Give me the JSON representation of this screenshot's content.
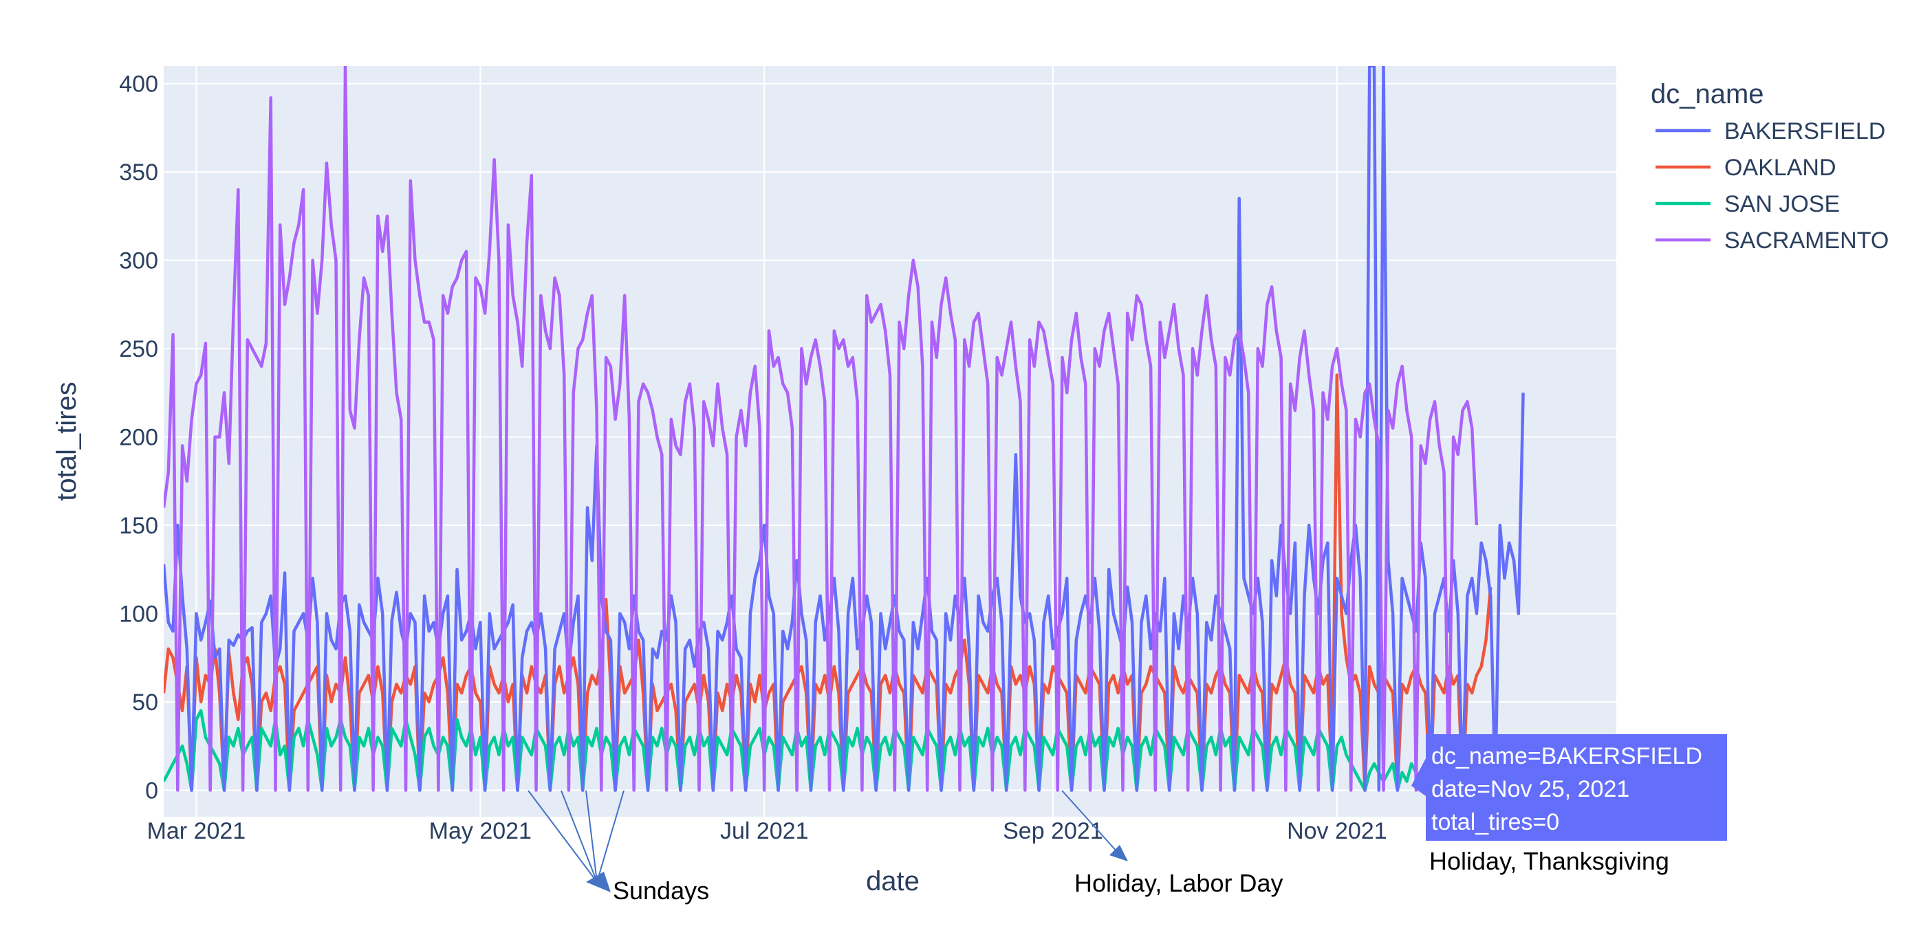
{
  "chart_data": {
    "type": "line",
    "x_start": "2021-02-22",
    "x_end": "2021-12-31",
    "xlabel": "date",
    "ylabel": "total_tires",
    "ylim": [
      -15,
      410
    ],
    "x_ticks": [
      {
        "date": "2021-03-01",
        "label": "Mar 2021"
      },
      {
        "date": "2021-05-01",
        "label": "May 2021"
      },
      {
        "date": "2021-07-01",
        "label": "Jul 2021"
      },
      {
        "date": "2021-09-01",
        "label": "Sep 2021"
      },
      {
        "date": "2021-11-01",
        "label": "Nov 2021"
      }
    ],
    "y_ticks": [
      0,
      50,
      100,
      150,
      200,
      250,
      300,
      350,
      400
    ],
    "legend": {
      "title": "dc_name",
      "position": "right"
    },
    "series": [
      {
        "name": "BAKERSFIELD",
        "color": "#636efa",
        "values": [
          128,
          95,
          90,
          150,
          110,
          80,
          0,
          100,
          85,
          95,
          107,
          75,
          80,
          0,
          85,
          82,
          88,
          85,
          90,
          92,
          0,
          95,
          100,
          110,
          70,
          80,
          123,
          0,
          90,
          95,
          100,
          85,
          120,
          95,
          0,
          100,
          85,
          80,
          105,
          110,
          90,
          0,
          105,
          95,
          90,
          85,
          120,
          100,
          0,
          96,
          112,
          90,
          80,
          100,
          95,
          0,
          110,
          90,
          95,
          80,
          100,
          110,
          0,
          125,
          85,
          90,
          100,
          80,
          95,
          0,
          100,
          80,
          85,
          90,
          95,
          105,
          0,
          75,
          90,
          95,
          85,
          100,
          80,
          0,
          80,
          90,
          100,
          70,
          95,
          110,
          0,
          160,
          130,
          195,
          110,
          90,
          85,
          0,
          100,
          95,
          80,
          110,
          90,
          85,
          0,
          80,
          75,
          90,
          85,
          110,
          95,
          0,
          80,
          85,
          70,
          90,
          95,
          80,
          0,
          90,
          85,
          95,
          110,
          80,
          75,
          0,
          100,
          120,
          130,
          150,
          110,
          100,
          0,
          90,
          80,
          95,
          130,
          100,
          85,
          0,
          95,
          110,
          85,
          100,
          120,
          90,
          0,
          100,
          120,
          80,
          90,
          110,
          95,
          0,
          100,
          80,
          95,
          110,
          90,
          85,
          0,
          95,
          80,
          100,
          120,
          90,
          85,
          0,
          100,
          85,
          110,
          95,
          120,
          80,
          0,
          110,
          95,
          90,
          110,
          120,
          95,
          0,
          100,
          190,
          110,
          95,
          100,
          85,
          0,
          95,
          110,
          80,
          90,
          100,
          120,
          0,
          85,
          100,
          110,
          95,
          120,
          90,
          0,
          125,
          100,
          90,
          80,
          115,
          95,
          0,
          95,
          110,
          80,
          100,
          90,
          120,
          0,
          100,
          80,
          110,
          90,
          120,
          100,
          0,
          95,
          85,
          110,
          100,
          90,
          80,
          0,
          335,
          120,
          110,
          100,
          120,
          95,
          0,
          130,
          110,
          150,
          120,
          100,
          140,
          0,
          110,
          150,
          120,
          100,
          130,
          140,
          0,
          120,
          110,
          100,
          130,
          150,
          120,
          0,
          410,
          410,
          0,
          410,
          130,
          100,
          0,
          120,
          110,
          100,
          90,
          140,
          120,
          0,
          100,
          110,
          120,
          90,
          130,
          100,
          0,
          110,
          120,
          100,
          140,
          130,
          110,
          0,
          150,
          120,
          140,
          130,
          100,
          225
        ]
      },
      {
        "name": "OAKLAND",
        "color": "#ef553b",
        "values": [
          55,
          80,
          75,
          60,
          45,
          70,
          0,
          75,
          50,
          65,
          60,
          80,
          55,
          0,
          78,
          55,
          40,
          70,
          75,
          60,
          0,
          50,
          55,
          45,
          65,
          70,
          60,
          0,
          45,
          50,
          55,
          60,
          65,
          70,
          0,
          65,
          50,
          60,
          55,
          75,
          50,
          0,
          55,
          60,
          65,
          50,
          70,
          55,
          0,
          50,
          60,
          55,
          65,
          60,
          70,
          0,
          55,
          50,
          60,
          65,
          75,
          55,
          0,
          60,
          55,
          65,
          70,
          55,
          50,
          0,
          70,
          60,
          55,
          65,
          50,
          60,
          0,
          65,
          55,
          70,
          60,
          55,
          65,
          0,
          60,
          70,
          55,
          65,
          75,
          60,
          0,
          55,
          65,
          60,
          75,
          108,
          60,
          0,
          70,
          55,
          60,
          65,
          85,
          55,
          0,
          60,
          45,
          50,
          55,
          60,
          45,
          0,
          50,
          55,
          60,
          45,
          65,
          50,
          0,
          55,
          45,
          60,
          50,
          65,
          55,
          0,
          60,
          50,
          65,
          45,
          55,
          60,
          0,
          50,
          55,
          60,
          65,
          70,
          55,
          0,
          60,
          55,
          65,
          50,
          70,
          55,
          0,
          55,
          60,
          65,
          70,
          60,
          55,
          0,
          60,
          65,
          55,
          70,
          60,
          55,
          0,
          65,
          60,
          55,
          70,
          65,
          60,
          0,
          60,
          55,
          65,
          70,
          85,
          60,
          0,
          65,
          60,
          55,
          70,
          60,
          55,
          0,
          70,
          60,
          65,
          55,
          70,
          60,
          0,
          60,
          55,
          70,
          65,
          60,
          55,
          0,
          65,
          60,
          55,
          70,
          65,
          60,
          0,
          60,
          65,
          55,
          70,
          60,
          65,
          0,
          55,
          60,
          70,
          65,
          60,
          55,
          0,
          70,
          60,
          55,
          65,
          60,
          55,
          0,
          60,
          55,
          65,
          70,
          60,
          55,
          0,
          65,
          60,
          55,
          70,
          60,
          55,
          0,
          60,
          55,
          65,
          75,
          60,
          55,
          0,
          65,
          60,
          55,
          70,
          60,
          65,
          0,
          235,
          100,
          75,
          60,
          65,
          55,
          0,
          70,
          60,
          55,
          65,
          60,
          55,
          0,
          60,
          55,
          65,
          70,
          60,
          55,
          0,
          65,
          60,
          55,
          70,
          60,
          65,
          0,
          60,
          55,
          65,
          70,
          85,
          115
        ]
      },
      {
        "name": "SAN JOSE",
        "color": "#00cc96",
        "values": [
          5,
          10,
          15,
          20,
          25,
          15,
          0,
          40,
          45,
          30,
          25,
          20,
          15,
          0,
          30,
          25,
          35,
          20,
          25,
          30,
          0,
          35,
          30,
          25,
          40,
          20,
          25,
          0,
          30,
          35,
          25,
          40,
          30,
          20,
          0,
          35,
          25,
          30,
          40,
          30,
          25,
          0,
          30,
          25,
          35,
          20,
          30,
          25,
          0,
          35,
          30,
          25,
          40,
          30,
          20,
          0,
          30,
          35,
          25,
          20,
          30,
          25,
          0,
          40,
          30,
          25,
          35,
          20,
          30,
          0,
          25,
          30,
          20,
          35,
          25,
          30,
          0,
          30,
          25,
          20,
          35,
          30,
          25,
          0,
          25,
          30,
          20,
          35,
          25,
          30,
          0,
          30,
          25,
          35,
          20,
          30,
          25,
          0,
          25,
          30,
          20,
          35,
          30,
          25,
          0,
          30,
          25,
          35,
          20,
          30,
          25,
          0,
          25,
          30,
          20,
          35,
          25,
          30,
          0,
          30,
          25,
          20,
          35,
          30,
          25,
          0,
          25,
          30,
          35,
          20,
          30,
          25,
          0,
          30,
          25,
          20,
          35,
          25,
          30,
          0,
          25,
          30,
          20,
          35,
          30,
          25,
          0,
          30,
          25,
          35,
          20,
          30,
          25,
          0,
          25,
          30,
          20,
          35,
          30,
          25,
          0,
          30,
          25,
          20,
          35,
          30,
          25,
          0,
          25,
          30,
          20,
          35,
          25,
          30,
          0,
          30,
          25,
          35,
          20,
          30,
          25,
          0,
          25,
          30,
          20,
          35,
          30,
          25,
          0,
          30,
          25,
          20,
          35,
          30,
          25,
          0,
          25,
          30,
          20,
          35,
          25,
          30,
          0,
          30,
          25,
          35,
          20,
          30,
          25,
          0,
          25,
          30,
          20,
          35,
          30,
          25,
          0,
          30,
          25,
          20,
          35,
          30,
          25,
          0,
          25,
          30,
          20,
          35,
          25,
          30,
          0,
          30,
          25,
          20,
          35,
          30,
          25,
          0,
          25,
          30,
          20,
          35,
          30,
          25,
          0,
          30,
          25,
          20,
          35,
          30,
          25,
          0,
          25,
          30,
          20,
          15,
          10,
          5,
          0,
          10,
          15,
          10,
          5,
          10,
          15,
          0,
          10,
          5,
          15,
          10,
          5,
          10,
          0,
          15,
          10,
          5,
          10,
          15,
          10,
          0,
          10,
          15,
          10,
          5,
          10,
          15,
          0,
          10,
          5,
          15,
          10,
          5,
          10
        ]
      },
      {
        "name": "SACRAMENTO",
        "color": "#ab63fa",
        "values": [
          160,
          180,
          258,
          0,
          195,
          175,
          210,
          230,
          235,
          253,
          0,
          200,
          200,
          225,
          185,
          270,
          340,
          0,
          255,
          250,
          245,
          240,
          253,
          392,
          0,
          320,
          275,
          290,
          310,
          320,
          340,
          0,
          300,
          270,
          300,
          355,
          320,
          300,
          0,
          410,
          215,
          205,
          255,
          290,
          280,
          0,
          325,
          305,
          325,
          270,
          225,
          210,
          0,
          345,
          300,
          280,
          265,
          265,
          255,
          0,
          280,
          270,
          285,
          290,
          300,
          305,
          0,
          290,
          285,
          270,
          305,
          357,
          300,
          0,
          320,
          280,
          265,
          240,
          310,
          348,
          0,
          280,
          260,
          250,
          290,
          280,
          235,
          0,
          225,
          250,
          255,
          270,
          280,
          215,
          0,
          245,
          240,
          210,
          230,
          280,
          210,
          0,
          220,
          230,
          225,
          215,
          200,
          190,
          0,
          210,
          195,
          190,
          220,
          230,
          205,
          0,
          220,
          210,
          195,
          230,
          205,
          190,
          0,
          200,
          215,
          195,
          225,
          240,
          205,
          0,
          260,
          240,
          245,
          230,
          225,
          205,
          0,
          250,
          230,
          245,
          255,
          240,
          220,
          0,
          260,
          250,
          255,
          240,
          245,
          220,
          0,
          280,
          265,
          270,
          275,
          260,
          235,
          0,
          265,
          250,
          280,
          300,
          285,
          240,
          0,
          265,
          245,
          275,
          290,
          270,
          255,
          0,
          255,
          240,
          265,
          270,
          250,
          230,
          0,
          245,
          235,
          250,
          265,
          240,
          220,
          0,
          255,
          240,
          265,
          260,
          245,
          230,
          0,
          245,
          225,
          255,
          270,
          245,
          230,
          0,
          250,
          240,
          260,
          270,
          250,
          230,
          0,
          270,
          255,
          280,
          275,
          255,
          240,
          0,
          265,
          245,
          260,
          275,
          250,
          235,
          0,
          250,
          235,
          260,
          280,
          255,
          240,
          0,
          245,
          235,
          255,
          260,
          245,
          225,
          0,
          250,
          240,
          275,
          285,
          260,
          245,
          0,
          230,
          215,
          245,
          260,
          235,
          215,
          0,
          225,
          210,
          240,
          250,
          230,
          215,
          0,
          210,
          200,
          225,
          230,
          210,
          195,
          0,
          215,
          205,
          230,
          240,
          215,
          200,
          0,
          195,
          185,
          210,
          220,
          195,
          180,
          0,
          200,
          190,
          215,
          220,
          205,
          150
        ]
      }
    ],
    "hover": {
      "lines": [
        "dc_name=BAKERSFIELD",
        "date=Nov 25, 2021",
        "total_tires=0"
      ]
    },
    "annotations": {
      "sundays": "Sundays",
      "labor_day": "Holiday, Labor Day",
      "thanksgiving": "Holiday, Thanksgiving"
    }
  }
}
